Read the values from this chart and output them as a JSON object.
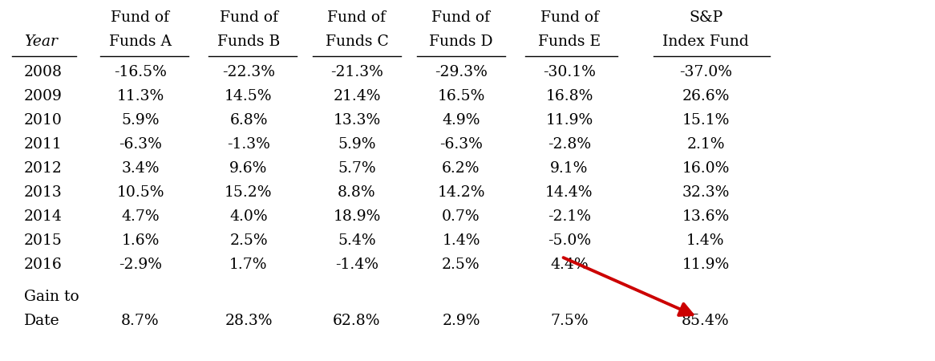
{
  "col_headers_line1": [
    "",
    "Fund of",
    "Fund of",
    "Fund of",
    "Fund of",
    "Fund of",
    "S&P"
  ],
  "col_headers_line2": [
    "Year",
    "Funds A",
    "Funds B",
    "Funds C",
    "Funds D",
    "Funds E",
    "Index Fund"
  ],
  "rows": [
    [
      "2008",
      "-16.5%",
      "-22.3%",
      "-21.3%",
      "-29.3%",
      "-30.1%",
      "-37.0%"
    ],
    [
      "2009",
      "11.3%",
      "14.5%",
      "21.4%",
      "16.5%",
      "16.8%",
      "26.6%"
    ],
    [
      "2010",
      "5.9%",
      "6.8%",
      "13.3%",
      "4.9%",
      "11.9%",
      "15.1%"
    ],
    [
      "2011",
      "-6.3%",
      "-1.3%",
      "5.9%",
      "-6.3%",
      "-2.8%",
      "2.1%"
    ],
    [
      "2012",
      "3.4%",
      "9.6%",
      "5.7%",
      "6.2%",
      "9.1%",
      "16.0%"
    ],
    [
      "2013",
      "10.5%",
      "15.2%",
      "8.8%",
      "14.2%",
      "14.4%",
      "32.3%"
    ],
    [
      "2014",
      "4.7%",
      "4.0%",
      "18.9%",
      "0.7%",
      "-2.1%",
      "13.6%"
    ],
    [
      "2015",
      "1.6%",
      "2.5%",
      "5.4%",
      "1.4%",
      "-5.0%",
      "1.4%"
    ],
    [
      "2016",
      "-2.9%",
      "1.7%",
      "-1.4%",
      "2.5%",
      "4.4%",
      "11.9%"
    ]
  ],
  "footer": [
    "Gain to",
    "Date",
    "8.7%",
    "28.3%",
    "62.8%",
    "2.9%",
    "7.5%",
    "85.4%"
  ],
  "bg_color": "#ffffff",
  "text_color": "#000000",
  "arrow_color": "#cc0000",
  "font_size": 13.5
}
